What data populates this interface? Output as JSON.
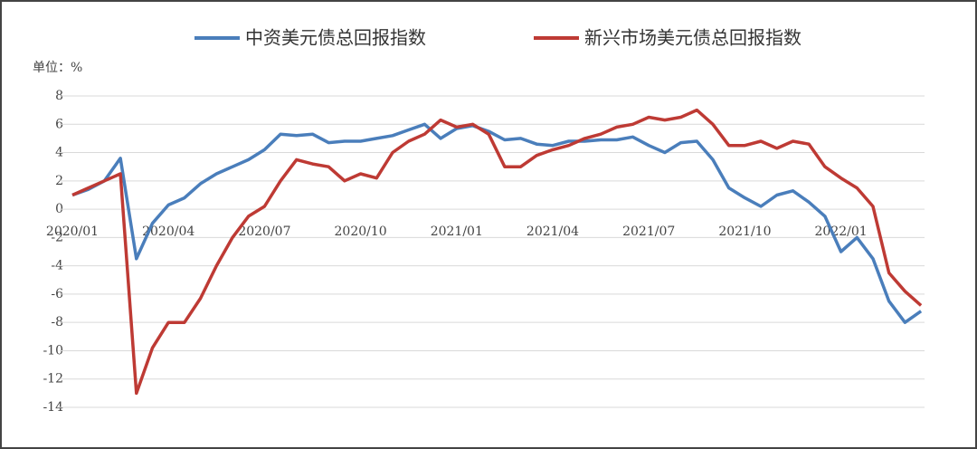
{
  "chart_data": {
    "type": "line",
    "unit_label": "单位：%",
    "categories": [
      "2020/01",
      null,
      null,
      null,
      null,
      null,
      "2020/04",
      null,
      null,
      null,
      null,
      null,
      "2020/07",
      null,
      null,
      null,
      null,
      null,
      "2020/10",
      null,
      null,
      null,
      null,
      null,
      "2021/01",
      null,
      null,
      null,
      null,
      null,
      "2021/04",
      null,
      null,
      null,
      null,
      null,
      "2021/07",
      null,
      null,
      null,
      null,
      null,
      "2021/10",
      null,
      null,
      null,
      null,
      null,
      "2022/01",
      null,
      null,
      null,
      null,
      null
    ],
    "series": [
      {
        "name": "中资美元债总回报指数",
        "color": "#4a7ebb",
        "values": [
          1.0,
          1.4,
          2.0,
          3.6,
          -3.5,
          -1.0,
          0.3,
          0.8,
          1.8,
          2.5,
          3.0,
          3.5,
          4.2,
          5.3,
          5.2,
          5.3,
          4.7,
          4.8,
          4.8,
          5.0,
          5.2,
          5.6,
          6.0,
          5.0,
          5.7,
          5.9,
          5.5,
          4.9,
          5.0,
          4.6,
          4.5,
          4.8,
          4.8,
          4.9,
          4.9,
          5.1,
          4.5,
          4.0,
          4.7,
          4.8,
          3.5,
          1.5,
          0.8,
          0.2,
          1.0,
          1.3,
          0.5,
          -0.5,
          -3.0,
          -2.0,
          -3.5,
          -6.5,
          -8.0,
          -7.2
        ]
      },
      {
        "name": "新兴市场美元债总回报指数",
        "color": "#be3a34",
        "values": [
          1.0,
          1.5,
          2.0,
          2.5,
          -13.0,
          -9.8,
          -8.0,
          -8.0,
          -6.3,
          -4.0,
          -2.0,
          -0.5,
          0.2,
          2.0,
          3.5,
          3.2,
          3.0,
          2.0,
          2.5,
          2.2,
          4.0,
          4.8,
          5.3,
          6.3,
          5.8,
          6.0,
          5.3,
          3.0,
          3.0,
          3.8,
          4.2,
          4.5,
          5.0,
          5.3,
          5.8,
          6.0,
          6.5,
          6.3,
          6.5,
          7.0,
          6.0,
          4.5,
          4.5,
          4.8,
          4.3,
          4.8,
          4.6,
          3.0,
          2.2,
          1.5,
          0.2,
          -4.5,
          -5.8,
          -6.8
        ]
      }
    ],
    "ylim": [
      -14,
      8
    ],
    "yticks": [
      -14,
      -12,
      -10,
      -8,
      -6,
      -4,
      -2,
      0,
      2,
      4,
      6,
      8
    ],
    "grid": true
  }
}
